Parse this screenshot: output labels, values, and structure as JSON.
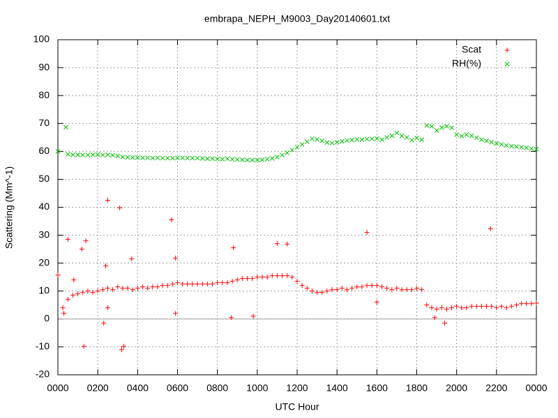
{
  "chart_data": {
    "type": "scatter",
    "title": "embrapa_NEPH_M9003_Day20140601.txt",
    "x_label": "UTC Hour",
    "y_label": "Scattering (Mm^-1)",
    "xlim": [
      0,
      24
    ],
    "ylim": [
      -20,
      100
    ],
    "xticks": [
      {
        "value": 0,
        "label": "0000"
      },
      {
        "value": 2,
        "label": "0200"
      },
      {
        "value": 4,
        "label": "0400"
      },
      {
        "value": 6,
        "label": "0600"
      },
      {
        "value": 8,
        "label": "0800"
      },
      {
        "value": 10,
        "label": "1000"
      },
      {
        "value": 12,
        "label": "1200"
      },
      {
        "value": 14,
        "label": "1400"
      },
      {
        "value": 16,
        "label": "1600"
      },
      {
        "value": 18,
        "label": "1800"
      },
      {
        "value": 20,
        "label": "2000"
      },
      {
        "value": 22,
        "label": "2200"
      },
      {
        "value": 24,
        "label": "0000"
      }
    ],
    "yticks": [
      -20,
      -10,
      0,
      10,
      20,
      30,
      40,
      50,
      60,
      70,
      80,
      90,
      100
    ],
    "grid": true,
    "zero_axis": true,
    "legend": "top-right",
    "series": [
      {
        "name": "Scat",
        "color": "#ff0000",
        "marker": "plus",
        "x": [
          0.25,
          0.5,
          0.75,
          1,
          1.25,
          1.5,
          1.75,
          2,
          2.25,
          2.5,
          2.75,
          3,
          3.25,
          3.5,
          3.75,
          4,
          4.25,
          4.5,
          4.75,
          5,
          5.25,
          5.5,
          5.75,
          6,
          6.25,
          6.5,
          6.75,
          7,
          7.25,
          7.5,
          7.75,
          8,
          8.25,
          8.5,
          8.75,
          9,
          9.25,
          9.5,
          9.75,
          10,
          10.25,
          10.5,
          10.75,
          11,
          11.25,
          11.5,
          11.75,
          12,
          12.25,
          12.5,
          12.75,
          13,
          13.25,
          13.5,
          13.75,
          14,
          14.25,
          14.5,
          14.75,
          15,
          15.25,
          15.5,
          15.75,
          16,
          16.25,
          16.5,
          16.75,
          17,
          17.25,
          17.5,
          17.75,
          18,
          18.25,
          18.5,
          18.75,
          19,
          19.25,
          19.5,
          19.75,
          20,
          20.25,
          20.5,
          20.75,
          21,
          21.25,
          21.5,
          21.75,
          22,
          22.25,
          22.5,
          22.75,
          23,
          23.25,
          23.5,
          23.75,
          24,
          0,
          0.5,
          0.3,
          1.3,
          1.4,
          2.3,
          2.5,
          3.1,
          3.2,
          3.3,
          3.7,
          5.7,
          5.9,
          5.9,
          8.8,
          8.7,
          9.8,
          11,
          11.5,
          15.5,
          16,
          18.9,
          19.4,
          21.7,
          2.4,
          2.5,
          1.2,
          0.8
        ],
        "values": [
          4,
          7,
          8.5,
          9,
          9.5,
          10,
          9.5,
          10,
          10.5,
          11,
          10.5,
          11.5,
          11,
          11,
          10.5,
          11,
          11.5,
          11,
          11.5,
          11.5,
          12,
          12,
          12.5,
          13,
          12.5,
          12.5,
          12.5,
          12.5,
          12.5,
          12.5,
          12.5,
          13,
          13,
          13,
          13.5,
          14,
          14.5,
          14.5,
          14.5,
          15,
          15,
          15,
          15.5,
          15.5,
          15.5,
          15.5,
          15,
          13.5,
          12,
          11,
          10,
          9.5,
          9.5,
          10,
          10.5,
          10.5,
          11,
          10.5,
          11,
          11.5,
          11.5,
          12,
          12,
          12,
          11.5,
          11,
          10.5,
          11,
          10.5,
          10.5,
          10.5,
          11,
          10.5,
          5,
          4,
          3.5,
          4,
          3.5,
          4,
          4.5,
          4,
          4,
          4.5,
          4.5,
          4.5,
          4.5,
          4.5,
          4,
          4.5,
          4,
          4.5,
          5,
          5.5,
          5.5,
          5.5,
          5.7,
          15.7,
          28.5,
          2,
          -9.8,
          28,
          -1.5,
          42.5,
          39.8,
          -11,
          -9.8,
          21.5,
          35.5,
          21.8,
          2,
          25.5,
          0.5,
          1,
          27,
          26.8,
          31,
          6,
          0.5,
          -1.5,
          32.3,
          19,
          4,
          25,
          14
        ]
      },
      {
        "name": "RH(%)",
        "color": "#00c000",
        "marker": "cross",
        "x": [
          0,
          0.4,
          0.5,
          0.75,
          1,
          1.25,
          1.5,
          1.75,
          2,
          2.25,
          2.5,
          2.75,
          3,
          3.25,
          3.5,
          3.75,
          4,
          4.25,
          4.5,
          4.75,
          5,
          5.25,
          5.5,
          5.75,
          6,
          6.25,
          6.5,
          6.75,
          7,
          7.25,
          7.5,
          7.75,
          8,
          8.25,
          8.5,
          8.75,
          9,
          9.25,
          9.5,
          9.75,
          10,
          10.25,
          10.5,
          10.75,
          11,
          11.25,
          11.5,
          11.75,
          12,
          12.25,
          12.5,
          12.75,
          13,
          13.25,
          13.5,
          13.75,
          14,
          14.25,
          14.5,
          14.75,
          15,
          15.25,
          15.5,
          15.75,
          16,
          16.25,
          16.5,
          16.75,
          17,
          17.25,
          17.5,
          17.75,
          18,
          18.25,
          18.5,
          18.75,
          19,
          19.25,
          19.5,
          19.75,
          20,
          20.25,
          20.5,
          20.75,
          21,
          21.25,
          21.5,
          21.75,
          22,
          22.25,
          22.5,
          22.75,
          23,
          23.25,
          23.5,
          23.75,
          24
        ],
        "values": [
          60,
          68.7,
          59,
          58.8,
          58.8,
          58.7,
          58.7,
          58.8,
          58.9,
          58.7,
          58.8,
          58.6,
          58.4,
          58,
          57.9,
          57.8,
          57.8,
          57.7,
          57.7,
          57.6,
          57.7,
          57.6,
          57.6,
          57.6,
          57.7,
          57.7,
          57.6,
          57.6,
          57.6,
          57.5,
          57.4,
          57.4,
          57.3,
          57.2,
          57.4,
          57.2,
          57.1,
          57,
          56.9,
          56.9,
          56.9,
          57,
          57.2,
          57.5,
          58,
          58.7,
          59.5,
          60.5,
          61.5,
          62.5,
          63.5,
          64.5,
          64.3,
          63.8,
          63.2,
          63,
          63.3,
          63.6,
          63.9,
          64.1,
          64.3,
          64.2,
          64.4,
          64.5,
          64.6,
          64.2,
          65,
          65.6,
          66.6,
          65.6,
          65,
          64,
          64.8,
          64.2,
          69.3,
          69,
          67.5,
          68.5,
          69,
          68.5,
          66,
          65.5,
          66,
          65.6,
          64.9,
          64.2,
          63.8,
          63.3,
          62.9,
          62.5,
          62.1,
          61.9,
          61.7,
          61.5,
          61.3,
          61,
          60.8
        ]
      }
    ]
  }
}
